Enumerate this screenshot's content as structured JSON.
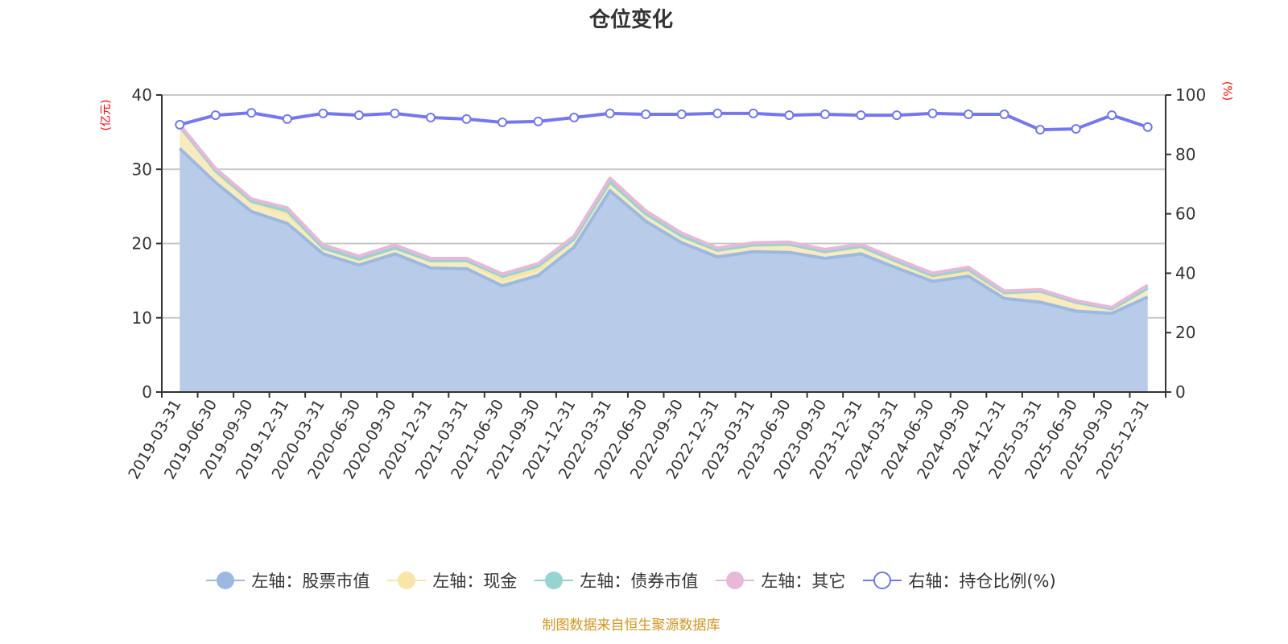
{
  "title": "仓位变化",
  "source_note": "制图数据来自恒生聚源数据库",
  "axes": {
    "left_unit": "(亿元)",
    "right_unit": "(%)",
    "left_ticks": [
      "0",
      "10",
      "20",
      "30",
      "40"
    ],
    "right_ticks": [
      "0",
      "20",
      "40",
      "60",
      "80",
      "100"
    ]
  },
  "legend": [
    {
      "label": "左轴：股票市值",
      "color": "#9cb9e2",
      "icon": "filled-circle-icon"
    },
    {
      "label": "左轴：现金",
      "color": "#f7e6a8",
      "icon": "filled-circle-icon"
    },
    {
      "label": "左轴：债券市值",
      "color": "#96d3d3",
      "icon": "filled-circle-icon"
    },
    {
      "label": "左轴：其它",
      "color": "#e8b8d8",
      "icon": "filled-circle-icon"
    },
    {
      "label": "右轴：持仓比例(%)",
      "color": "#7378f0",
      "icon": "hollow-circle-icon"
    }
  ],
  "chart_data": {
    "type": "area",
    "title": "仓位变化",
    "xlabel": "",
    "ylabel": "亿元",
    "y2label": "%",
    "ylim": [
      0,
      40
    ],
    "y2lim": [
      0,
      100
    ],
    "grid": true,
    "legend_position": "bottom",
    "stacked": true,
    "categories": [
      "2019-03-31",
      "2019-06-30",
      "2019-09-30",
      "2019-12-31",
      "2020-03-31",
      "2020-06-30",
      "2020-09-30",
      "2020-12-31",
      "2021-03-31",
      "2021-06-30",
      "2021-09-30",
      "2021-12-31",
      "2022-03-31",
      "2022-06-30",
      "2022-09-30",
      "2022-12-31",
      "2023-03-31",
      "2023-06-30",
      "2023-09-30",
      "2023-12-31",
      "2024-03-31",
      "2024-06-30",
      "2024-09-30",
      "2024-12-31",
      "2025-03-31",
      "2025-06-30",
      "2025-09-30",
      "2025-12-31"
    ],
    "series": [
      {
        "name": "左轴：股票市值",
        "axis": "left",
        "type": "area",
        "color": "#9cb9e2",
        "values": [
          32.8,
          28.2,
          24.3,
          22.7,
          18.6,
          17.1,
          18.6,
          16.7,
          16.6,
          14.3,
          15.7,
          19.5,
          27.1,
          23.0,
          20.1,
          18.2,
          18.9,
          18.8,
          18.0,
          18.6,
          16.7,
          14.9,
          15.6,
          12.6,
          12.1,
          10.9,
          10.6,
          12.8
        ]
      },
      {
        "name": "左轴：现金",
        "axis": "left",
        "type": "area",
        "color": "#f7e6a8",
        "values": [
          3.0,
          1.4,
          1.2,
          1.3,
          0.8,
          0.7,
          0.8,
          1.0,
          1.1,
          0.8,
          0.8,
          1.1,
          1.2,
          1.0,
          0.9,
          0.9,
          0.9,
          1.1,
          0.9,
          1.0,
          0.9,
          0.5,
          0.6,
          0.7,
          1.4,
          1.1,
          0.6,
          1.2
        ]
      },
      {
        "name": "左轴：债券市值",
        "axis": "left",
        "type": "area",
        "color": "#96d3d3",
        "values": [
          0.0,
          0.2,
          0.2,
          0.4,
          0.0,
          0.1,
          0.0,
          0.0,
          0.0,
          0.5,
          0.5,
          0.0,
          0.0,
          0.0,
          0.0,
          0.0,
          0.0,
          0.0,
          0.0,
          0.0,
          0.0,
          0.3,
          0.3,
          0.1,
          0.1,
          0.1,
          0.0,
          0.0
        ]
      },
      {
        "name": "左轴：其它",
        "axis": "left",
        "type": "area",
        "color": "#e8b8d8",
        "values": [
          0.2,
          0.3,
          0.3,
          0.4,
          0.4,
          0.4,
          0.4,
          0.3,
          0.3,
          0.3,
          0.3,
          0.4,
          0.5,
          0.4,
          0.4,
          0.3,
          0.3,
          0.3,
          0.3,
          0.3,
          0.3,
          0.3,
          0.3,
          0.2,
          0.2,
          0.2,
          0.2,
          0.4
        ]
      },
      {
        "name": "右轴：持仓比例(%)",
        "axis": "right",
        "type": "line",
        "color": "#7378f0",
        "values": [
          90.0,
          93.2,
          94.0,
          91.9,
          93.8,
          93.2,
          93.8,
          92.4,
          91.9,
          90.8,
          91.1,
          92.4,
          93.8,
          93.5,
          93.5,
          93.8,
          93.8,
          93.2,
          93.5,
          93.2,
          93.2,
          93.8,
          93.5,
          93.5,
          88.3,
          88.6,
          93.2,
          89.2
        ]
      }
    ]
  }
}
